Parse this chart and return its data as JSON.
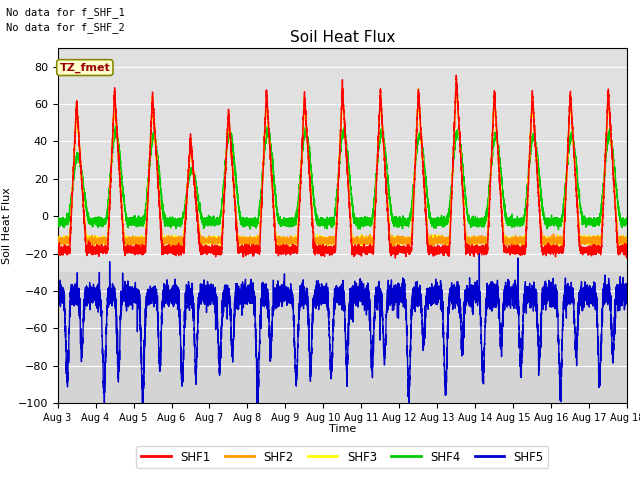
{
  "title": "Soil Heat Flux",
  "ylabel": "Soil Heat Flux",
  "xlabel": "Time",
  "note_line1": "No data for f_SHF_1",
  "note_line2": "No data for f_SHF_2",
  "annotation": "TZ_fmet",
  "ylim": [
    -100,
    90
  ],
  "yticks": [
    -100,
    -80,
    -60,
    -40,
    -20,
    0,
    20,
    40,
    60,
    80
  ],
  "xlim_days": [
    3,
    18
  ],
  "xtick_labels": [
    "Aug 3",
    "Aug 4",
    "Aug 5",
    "Aug 6",
    "Aug 7",
    "Aug 8",
    "Aug 9",
    "Aug 10",
    "Aug 11",
    "Aug 12",
    "Aug 13",
    "Aug 14",
    "Aug 15",
    "Aug 16",
    "Aug 17",
    "Aug 18"
  ],
  "colors": {
    "SHF1": "#ff0000",
    "SHF2": "#ff9900",
    "SHF3": "#ffff00",
    "SHF4": "#00cc00",
    "SHF5": "#0000cc"
  },
  "bg_color": "#e0e0e0",
  "band_color": "#d0d0d0",
  "linewidth": 1.0,
  "legend_labels": [
    "SHF1",
    "SHF2",
    "SHF3",
    "SHF4",
    "SHF5"
  ]
}
